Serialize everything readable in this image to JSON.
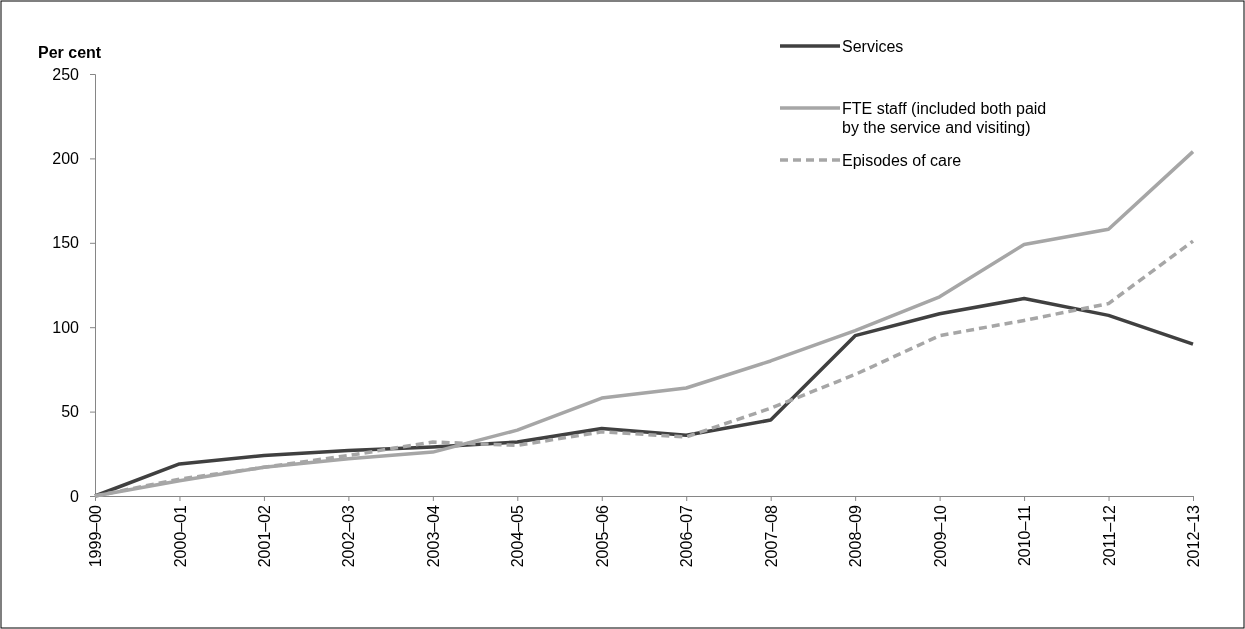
{
  "chart_data": {
    "type": "line",
    "ylabel": "Per cent",
    "categories": [
      "1999–00",
      "2000–01",
      "2001–02",
      "2002–03",
      "2003–04",
      "2004–05",
      "2005–06",
      "2006–07",
      "2007–08",
      "2008–09",
      "2009–10",
      "2010–11",
      "2011–12",
      "2012–13"
    ],
    "series": [
      {
        "name": "Services",
        "color": "#404040",
        "values": [
          0,
          19,
          24,
          27,
          29,
          32,
          40,
          36,
          45,
          95,
          108,
          117,
          107,
          90
        ]
      },
      {
        "name": "FTE staff (included both paid by the service and visiting)",
        "color": "#a6a6a6",
        "values": [
          0,
          9,
          17,
          22,
          26,
          39,
          58,
          64,
          80,
          98,
          118,
          149,
          158,
          204
        ]
      },
      {
        "name": "Episodes of care",
        "color": "#a6a6a6",
        "line_style": "dashed",
        "values": [
          0,
          10,
          17,
          24,
          32,
          30,
          38,
          35,
          52,
          72,
          95,
          104,
          114,
          151
        ]
      }
    ],
    "ylim": [
      0,
      250
    ],
    "yticks": [
      0,
      50,
      100,
      150,
      200,
      250
    ],
    "legend": "top right",
    "grid": false
  }
}
